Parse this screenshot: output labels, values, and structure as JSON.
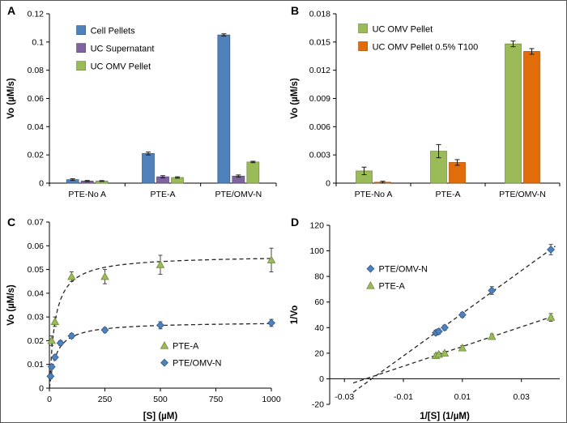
{
  "figure": {
    "background": "#ffffff"
  },
  "chart_data": [
    {
      "panel_label": "A",
      "type": "bar",
      "ylabel": "Vo (µM/s)",
      "ylim": [
        0,
        0.12
      ],
      "ytick_step": 0.02,
      "categories": [
        "PTE-No A",
        "PTE-A",
        "PTE/OMV-N"
      ],
      "series": [
        {
          "name": "Cell Pellets",
          "color": "#4f81bd",
          "edge": "#2f5a86",
          "values": [
            0.0025,
            0.021,
            0.105
          ],
          "errors": [
            0.0006,
            0.001,
            0.0008
          ]
        },
        {
          "name": "UC Supernatant",
          "color": "#8064a2",
          "edge": "#5c4776",
          "values": [
            0.0015,
            0.0045,
            0.005
          ],
          "errors": [
            0.0004,
            0.0008,
            0.0008
          ]
        },
        {
          "name": "UC OMV Pellet",
          "color": "#9bbb59",
          "edge": "#71893f",
          "values": [
            0.0015,
            0.004,
            0.015
          ],
          "errors": [
            0.0003,
            0.0005,
            0.0005
          ]
        }
      ],
      "legend": {
        "fx": 0.12,
        "fy": 0.07
      }
    },
    {
      "panel_label": "B",
      "type": "bar",
      "ylabel": "Vo (µM/s)",
      "ylim": [
        0,
        0.018
      ],
      "ytick_step": 0.003,
      "categories": [
        "PTE-No A",
        "PTE-A",
        "PTE/OMV-N"
      ],
      "series": [
        {
          "name": "UC OMV Pellet",
          "color": "#9bbb59",
          "edge": "#71893f",
          "values": [
            0.0013,
            0.0034,
            0.0148
          ],
          "errors": [
            0.0004,
            0.0007,
            0.0003
          ]
        },
        {
          "name": "UC OMV Pellet 0.5% T100",
          "color": "#e26b0a",
          "edge": "#a84f08",
          "values": [
            0.0001,
            0.0022,
            0.014
          ],
          "errors": [
            0.0001,
            0.0003,
            0.0003
          ]
        }
      ],
      "legend": {
        "fx": 0.1,
        "fy": 0.06
      }
    },
    {
      "panel_label": "C",
      "type": "scatter",
      "xlabel": "[S] (µM)",
      "ylabel": "Vo (µM/s)",
      "xlim": [
        0,
        1000
      ],
      "xticks": [
        0,
        250,
        500,
        750,
        1000
      ],
      "ylim": [
        0,
        0.07
      ],
      "ytick_step": 0.01,
      "series": [
        {
          "name": "PTE-A",
          "marker": "triangle",
          "color": "#9bbb59",
          "edge": "#71893f",
          "x": [
            10,
            25,
            100,
            250,
            500,
            1000
          ],
          "y": [
            0.02,
            0.028,
            0.047,
            0.047,
            0.052,
            0.054
          ],
          "errors": [
            0.002,
            0.002,
            0.002,
            0.003,
            0.004,
            0.005
          ],
          "fit": {
            "kind": "michaelis-menten",
            "vmax": 0.056,
            "km": 25
          }
        },
        {
          "name": "PTE/OMV-N",
          "marker": "diamond",
          "color": "#4f81bd",
          "edge": "#2f5a86",
          "x": [
            5,
            10,
            25,
            50,
            100,
            250,
            500,
            1000
          ],
          "y": [
            0.005,
            0.009,
            0.013,
            0.019,
            0.022,
            0.0245,
            0.0265,
            0.0275
          ],
          "errors": [
            0.001,
            0.001,
            0.001,
            0.001,
            0.001,
            0.001,
            0.0015,
            0.0015
          ],
          "fit": {
            "kind": "michaelis-menten",
            "vmax": 0.028,
            "km": 30
          }
        }
      ],
      "legend": {
        "fx": 0.5,
        "fy": 0.72
      }
    },
    {
      "panel_label": "D",
      "type": "scatter",
      "axis_at_zero": true,
      "xlabel": "1/[S] (1/µM)",
      "ylabel": "1/Vo",
      "xlim": [
        -0.035,
        0.043
      ],
      "xticks": [
        -0.03,
        -0.01,
        0.01,
        0.03
      ],
      "ylim": [
        -20,
        120
      ],
      "ytick_step": 20,
      "series": [
        {
          "name": "PTE/OMV-N",
          "marker": "diamond",
          "color": "#4f81bd",
          "edge": "#2f5a86",
          "x": [
            0.001,
            0.002,
            0.004,
            0.01,
            0.02,
            0.04
          ],
          "y": [
            36,
            37,
            40,
            50,
            69,
            101
          ],
          "errors": [
            2,
            2,
            2,
            2,
            3,
            4
          ],
          "fit": {
            "kind": "linear",
            "slope": 1667,
            "intercept": 34.5,
            "x_range": [
              -0.027,
              0.0415
            ]
          }
        },
        {
          "name": "PTE-A",
          "marker": "triangle",
          "color": "#9bbb59",
          "edge": "#71893f",
          "x": [
            0.001,
            0.002,
            0.004,
            0.01,
            0.02,
            0.04
          ],
          "y": [
            18,
            19,
            20,
            24,
            33,
            48
          ],
          "errors": [
            1.5,
            1.5,
            1.5,
            2,
            2,
            3
          ],
          "fit": {
            "kind": "linear",
            "slope": 770,
            "intercept": 17.5,
            "x_range": [
              -0.027,
              0.0415
            ]
          }
        }
      ],
      "legend": {
        "fx": 0.16,
        "fy": 0.22
      }
    }
  ]
}
